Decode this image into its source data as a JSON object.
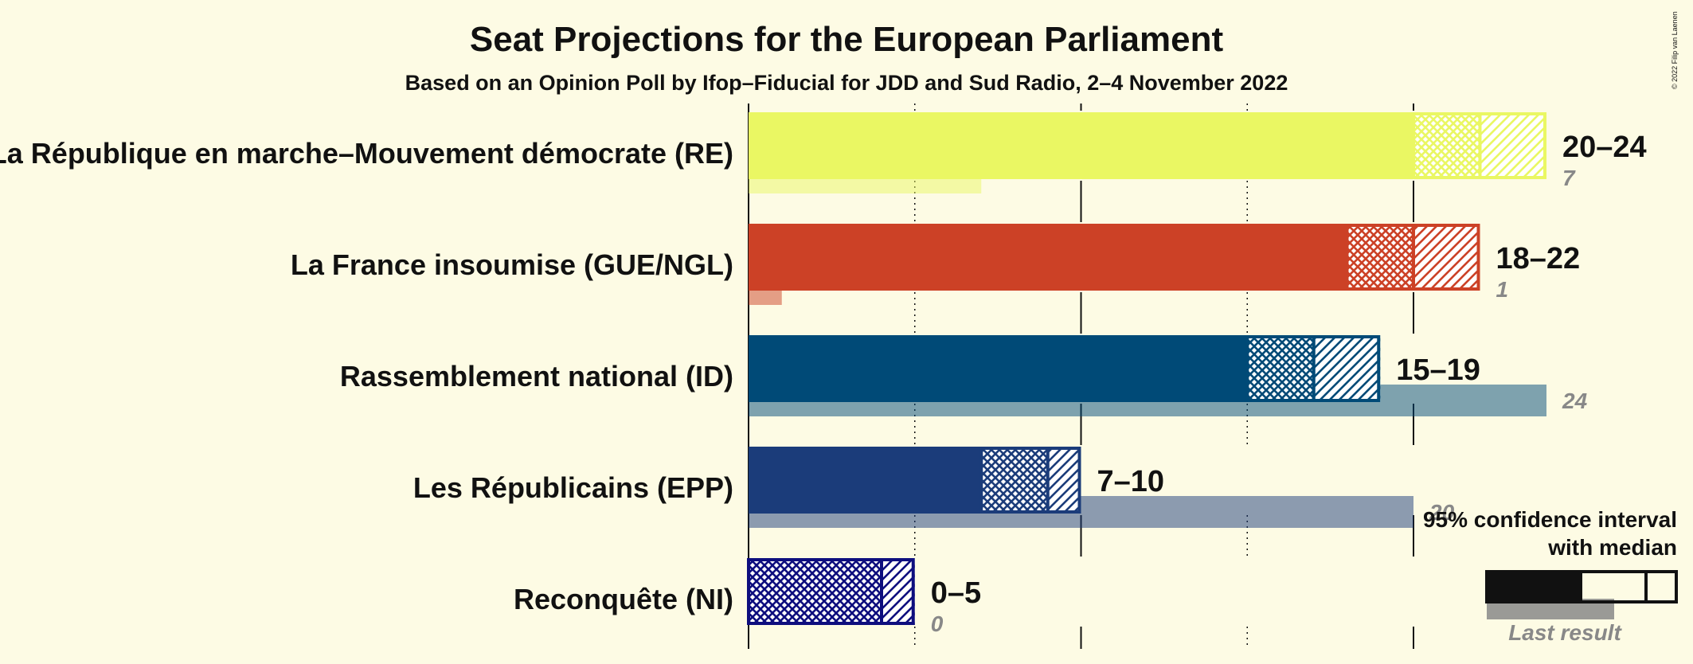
{
  "chart_data": {
    "type": "bar",
    "title": "Seat Projections for the European Parliament",
    "subtitle": "Based on an Opinion Poll by Ifop–Fiducial for JDD and Sud Radio, 2–4 November 2022",
    "copyright": "© 2022 Filip van Laenen",
    "xlim": [
      0,
      24
    ],
    "gridlines": [
      5,
      10,
      15,
      20
    ],
    "series": [
      {
        "name": "La République en marche–Mouvement démocrate (RE)",
        "low": 20,
        "median": 22,
        "high": 24,
        "range_label": "20–24",
        "last_result": 7,
        "last_label": "7",
        "color": "#eaf763"
      },
      {
        "name": "La France insoumise (GUE/NGL)",
        "low": 18,
        "median": 20,
        "high": 22,
        "range_label": "18–22",
        "last_result": 1,
        "last_label": "1",
        "color": "#cc4126"
      },
      {
        "name": "Rassemblement national (ID)",
        "low": 15,
        "median": 17,
        "high": 19,
        "range_label": "15–19",
        "last_result": 24,
        "last_label": "24",
        "color": "#004a77"
      },
      {
        "name": "Les Républicains (EPP)",
        "low": 7,
        "median": 9,
        "high": 10,
        "range_label": "7–10",
        "last_result": 20,
        "last_label": "20",
        "color": "#1b3c7a"
      },
      {
        "name": "Reconquête (NI)",
        "low": 0,
        "median": 4,
        "high": 5,
        "range_label": "0–5",
        "last_result": 0,
        "last_label": "0",
        "color": "#0e0e7e"
      }
    ],
    "legend": {
      "line1": "95% confidence interval",
      "line2": "with median",
      "last_result": "Last result"
    }
  }
}
